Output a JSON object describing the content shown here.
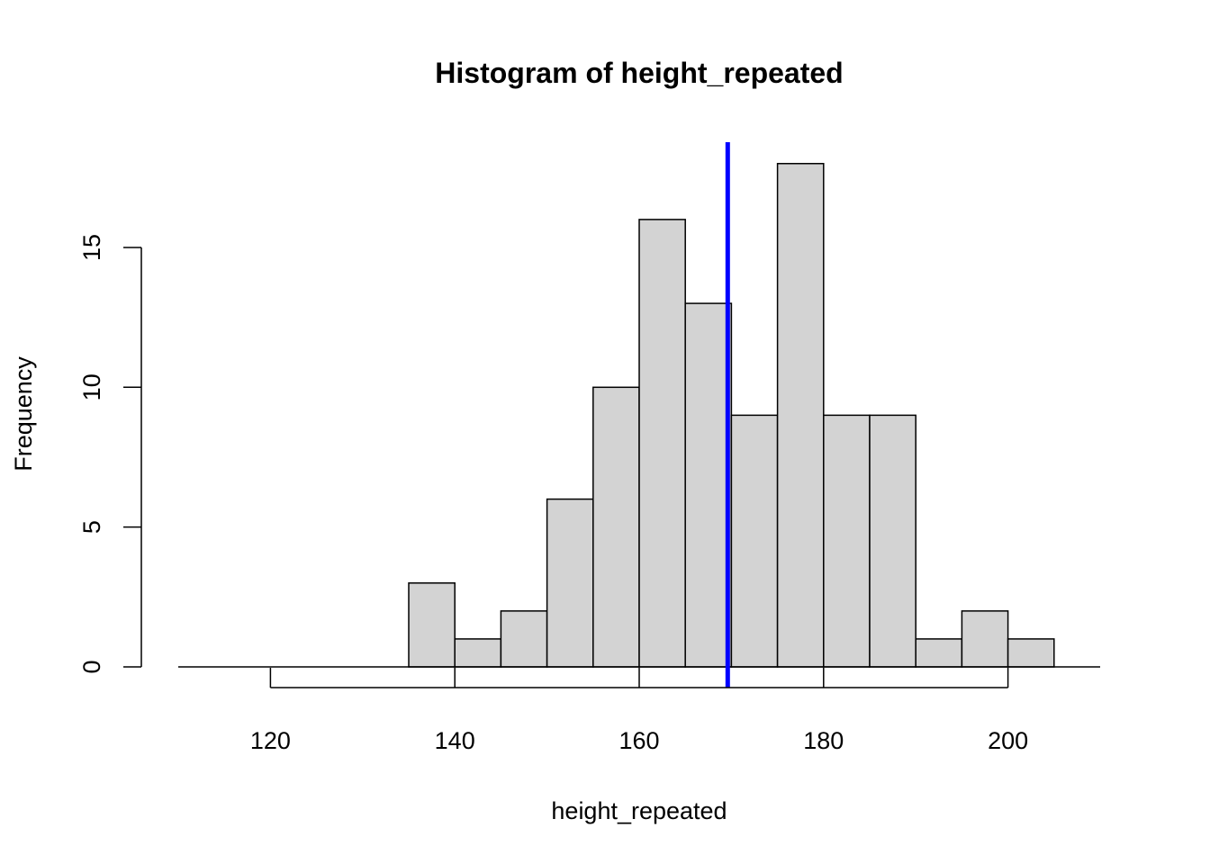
{
  "chart_data": {
    "type": "bar",
    "title": "Histogram of height_repeated",
    "xlabel": "height_repeated",
    "ylabel": "Frequency",
    "bar_fill": "#d3d3d3",
    "bar_stroke": "#000000",
    "bins": [
      {
        "start": 110,
        "end": 115,
        "count": 0
      },
      {
        "start": 115,
        "end": 120,
        "count": 0
      },
      {
        "start": 120,
        "end": 125,
        "count": 0
      },
      {
        "start": 125,
        "end": 130,
        "count": 0
      },
      {
        "start": 130,
        "end": 135,
        "count": 0
      },
      {
        "start": 135,
        "end": 140,
        "count": 3
      },
      {
        "start": 140,
        "end": 145,
        "count": 1
      },
      {
        "start": 145,
        "end": 150,
        "count": 2
      },
      {
        "start": 150,
        "end": 155,
        "count": 6
      },
      {
        "start": 155,
        "end": 160,
        "count": 10
      },
      {
        "start": 160,
        "end": 165,
        "count": 16
      },
      {
        "start": 165,
        "end": 170,
        "count": 13
      },
      {
        "start": 170,
        "end": 175,
        "count": 9
      },
      {
        "start": 175,
        "end": 180,
        "count": 18
      },
      {
        "start": 180,
        "end": 185,
        "count": 9
      },
      {
        "start": 185,
        "end": 190,
        "count": 9
      },
      {
        "start": 190,
        "end": 195,
        "count": 1
      },
      {
        "start": 195,
        "end": 200,
        "count": 2
      },
      {
        "start": 200,
        "end": 205,
        "count": 1
      }
    ],
    "xlim": [
      110,
      210
    ],
    "ylim": [
      0,
      18.7
    ],
    "x_ticks": [
      120,
      140,
      160,
      180,
      200
    ],
    "x_tick_labels": [
      "120",
      "140",
      "160",
      "180",
      "200"
    ],
    "y_ticks": [
      0,
      5,
      10,
      15
    ],
    "y_tick_labels": [
      "0",
      "5",
      "10",
      "15"
    ],
    "vline": {
      "x": 169.6,
      "color": "#0000ff"
    },
    "grid": false
  }
}
